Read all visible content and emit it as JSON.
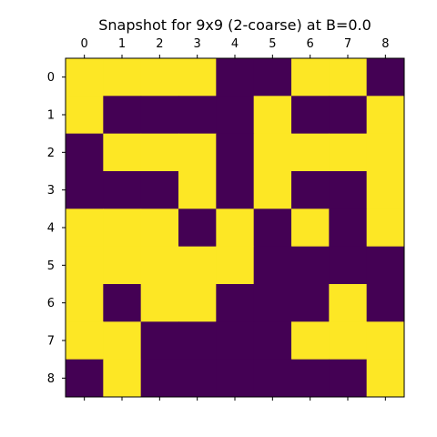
{
  "chart_data": {
    "type": "heatmap",
    "title": "Snapshot for 9x9 (2-coarse) at B=0.0",
    "x_ticks": [
      "0",
      "1",
      "2",
      "3",
      "4",
      "5",
      "6",
      "7",
      "8"
    ],
    "y_ticks": [
      "0",
      "1",
      "2",
      "3",
      "4",
      "5",
      "6",
      "7",
      "8"
    ],
    "colors": {
      "0": "#440154",
      "1": "#fde725"
    },
    "grid": [
      [
        1,
        1,
        1,
        1,
        0,
        0,
        1,
        1,
        0
      ],
      [
        1,
        0,
        0,
        0,
        0,
        1,
        0,
        0,
        1
      ],
      [
        0,
        1,
        1,
        1,
        0,
        1,
        1,
        1,
        1
      ],
      [
        0,
        0,
        0,
        1,
        0,
        1,
        0,
        0,
        1
      ],
      [
        1,
        1,
        1,
        0,
        1,
        0,
        1,
        0,
        1
      ],
      [
        1,
        1,
        1,
        1,
        1,
        0,
        0,
        0,
        0
      ],
      [
        1,
        0,
        1,
        1,
        0,
        0,
        0,
        1,
        0
      ],
      [
        1,
        1,
        0,
        0,
        0,
        0,
        1,
        1,
        1
      ],
      [
        0,
        1,
        0,
        0,
        0,
        0,
        0,
        0,
        1
      ]
    ]
  }
}
